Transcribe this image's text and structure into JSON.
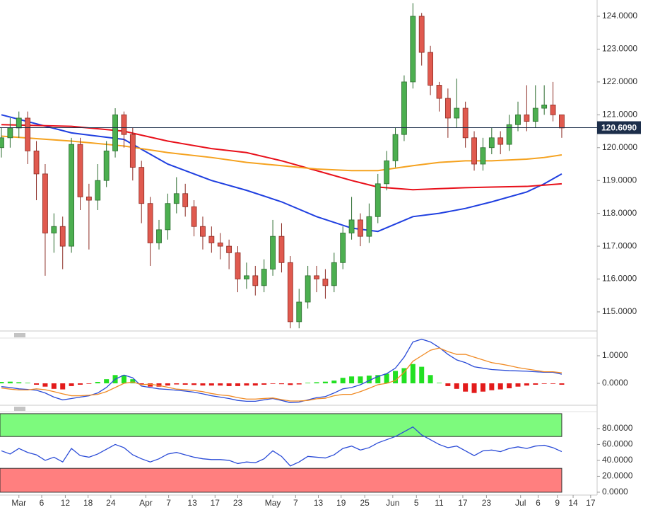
{
  "chart_data": [
    {
      "type": "candlestick",
      "x": [
        0,
        1,
        2,
        3,
        4,
        5,
        6,
        7,
        8,
        9,
        10,
        11,
        12,
        13,
        14,
        15,
        16,
        17,
        18,
        19,
        20,
        21,
        22,
        23,
        24,
        25,
        26,
        27,
        28,
        29,
        30,
        31,
        32,
        33,
        34,
        35,
        36,
        37,
        38,
        39,
        40,
        41,
        42,
        43,
        44,
        45,
        46,
        47,
        48,
        49,
        50,
        51,
        52,
        53,
        54,
        55,
        56,
        57,
        58,
        59,
        60,
        61,
        62,
        63,
        64
      ],
      "open": [
        120.0,
        120.3,
        120.6,
        120.9,
        119.9,
        119.2,
        117.4,
        117.6,
        117.0,
        120.1,
        118.5,
        118.4,
        119.0,
        119.9,
        121.0,
        120.4,
        119.4,
        118.3,
        117.1,
        117.5,
        118.3,
        118.6,
        118.2,
        117.6,
        117.3,
        117.1,
        117.0,
        116.8,
        116.0,
        116.1,
        115.8,
        116.3,
        117.3,
        116.5,
        114.7,
        115.3,
        116.1,
        116.0,
        115.8,
        116.5,
        117.4,
        117.8,
        117.3,
        117.9,
        118.9,
        119.6,
        120.4,
        122.0,
        124.0,
        122.9,
        121.9,
        121.5,
        120.9,
        121.2,
        120.3,
        119.5,
        120.0,
        120.3,
        120.1,
        120.7,
        121.0,
        120.8,
        121.2,
        121.3,
        121.0
      ],
      "high": [
        120.6,
        120.9,
        121.1,
        121.1,
        120.2,
        119.5,
        118.0,
        117.9,
        120.3,
        120.3,
        118.9,
        119.5,
        120.2,
        121.2,
        121.1,
        120.6,
        119.6,
        118.5,
        117.8,
        118.6,
        119.1,
        118.9,
        118.4,
        117.9,
        117.6,
        117.4,
        117.2,
        117.0,
        116.5,
        116.4,
        116.6,
        117.8,
        117.7,
        116.7,
        115.7,
        116.4,
        116.4,
        116.3,
        116.8,
        117.6,
        118.5,
        118.0,
        118.3,
        119.2,
        119.9,
        120.6,
        122.2,
        124.4,
        124.1,
        123.1,
        122.0,
        121.8,
        122.1,
        121.4,
        120.5,
        120.3,
        120.6,
        120.5,
        121.0,
        121.4,
        121.9,
        121.9,
        121.9,
        122.0,
        121.0
      ],
      "low": [
        119.7,
        120.0,
        120.3,
        119.5,
        118.4,
        116.1,
        116.8,
        116.3,
        116.8,
        118.1,
        116.9,
        118.1,
        118.8,
        119.7,
        120.0,
        119.0,
        117.7,
        116.4,
        116.9,
        117.2,
        118.0,
        117.9,
        117.3,
        116.9,
        116.8,
        116.6,
        116.3,
        115.6,
        115.7,
        115.5,
        115.6,
        116.1,
        116.2,
        114.5,
        114.5,
        115.1,
        115.6,
        115.4,
        115.6,
        116.3,
        117.2,
        117.0,
        117.1,
        117.7,
        118.7,
        119.4,
        120.2,
        121.8,
        122.5,
        121.6,
        121.1,
        120.3,
        120.6,
        120.0,
        119.3,
        119.3,
        119.8,
        119.8,
        119.9,
        120.5,
        120.5,
        120.6,
        121.0,
        120.8,
        120.3
      ],
      "close": [
        120.3,
        120.6,
        120.9,
        119.9,
        119.2,
        117.4,
        117.6,
        117.0,
        120.1,
        118.5,
        118.4,
        119.0,
        119.9,
        121.0,
        120.4,
        119.4,
        118.3,
        117.1,
        117.5,
        118.3,
        118.6,
        118.2,
        117.6,
        117.3,
        117.1,
        117.0,
        116.8,
        116.0,
        116.1,
        115.8,
        116.3,
        117.3,
        116.5,
        114.7,
        115.3,
        116.1,
        116.0,
        115.8,
        116.5,
        117.4,
        117.8,
        117.3,
        117.9,
        118.9,
        119.6,
        120.4,
        122.0,
        124.0,
        122.9,
        121.9,
        121.5,
        120.9,
        121.2,
        120.3,
        119.5,
        120.0,
        120.3,
        120.1,
        120.7,
        121.0,
        120.8,
        121.2,
        121.3,
        121.0,
        120.6
      ],
      "up_color": "#4caf50",
      "down_color": "#e05a4f",
      "series": [
        {
          "color": "#1f3fe0",
          "x": [
            0,
            8,
            14,
            19,
            24,
            28,
            32,
            36,
            40,
            43,
            47,
            50,
            53,
            56,
            60,
            62,
            64
          ],
          "values": [
            121.0,
            120.45,
            120.25,
            119.5,
            119.0,
            118.7,
            118.35,
            117.9,
            117.55,
            117.45,
            117.9,
            118.0,
            118.15,
            118.35,
            118.65,
            118.9,
            119.2
          ]
        },
        {
          "color": "#e8101a",
          "x": [
            0,
            8,
            14,
            19,
            24,
            28,
            32,
            36,
            40,
            43,
            47,
            50,
            53,
            56,
            60,
            62,
            64
          ],
          "values": [
            120.7,
            120.65,
            120.5,
            120.2,
            119.97,
            119.85,
            119.6,
            119.3,
            119.0,
            118.8,
            118.72,
            118.75,
            118.78,
            118.8,
            118.82,
            118.86,
            118.9
          ]
        },
        {
          "color": "#f5a21f",
          "x": [
            0,
            8,
            14,
            19,
            24,
            28,
            32,
            36,
            40,
            43,
            47,
            50,
            53,
            56,
            60,
            62,
            64
          ],
          "values": [
            120.35,
            120.2,
            120.05,
            119.85,
            119.7,
            119.55,
            119.45,
            119.35,
            119.3,
            119.3,
            119.45,
            119.55,
            119.6,
            119.6,
            119.65,
            119.7,
            119.78
          ]
        }
      ],
      "last_price": {
        "value": 120.609,
        "label": "120.6090"
      },
      "xlim": [
        -0.16,
        68.04
      ],
      "ylim": [
        114.418,
        124.495
      ],
      "yticks": [
        {
          "value": 115,
          "label": "115.0000"
        },
        {
          "value": 116,
          "label": "116.0000"
        },
        {
          "value": 117,
          "label": "117.0000"
        },
        {
          "value": 118,
          "label": "118.0000"
        },
        {
          "value": 119,
          "label": "119.0000"
        },
        {
          "value": 120,
          "label": "120.0000"
        },
        {
          "value": 121,
          "label": "121.0000"
        },
        {
          "value": 122,
          "label": "122.0000"
        },
        {
          "value": 123,
          "label": "123.0000"
        },
        {
          "value": 124,
          "label": "124.0000"
        }
      ]
    },
    {
      "type": "macd",
      "histogram": [
        0.05,
        0.06,
        0.04,
        0.02,
        -0.05,
        -0.12,
        -0.2,
        -0.22,
        -0.1,
        -0.05,
        -0.02,
        0.05,
        0.15,
        0.3,
        0.3,
        0.15,
        -0.05,
        -0.12,
        -0.12,
        -0.08,
        -0.04,
        -0.05,
        -0.06,
        -0.08,
        -0.08,
        -0.08,
        -0.1,
        -0.1,
        -0.08,
        -0.08,
        -0.05,
        -0.02,
        -0.03,
        -0.06,
        -0.04,
        0.02,
        0.04,
        0.06,
        0.1,
        0.2,
        0.25,
        0.25,
        0.28,
        0.3,
        0.35,
        0.45,
        0.55,
        0.7,
        0.6,
        0.3,
        0.02,
        -0.1,
        -0.2,
        -0.3,
        -0.35,
        -0.3,
        -0.25,
        -0.22,
        -0.18,
        -0.12,
        -0.08,
        -0.05,
        -0.02,
        -0.02,
        -0.05
      ],
      "positive_color": "#22e022",
      "negative_color": "#e31b1b",
      "series": [
        {
          "color": "#2a4bd7",
          "values": [
            -0.12,
            -0.15,
            -0.2,
            -0.22,
            -0.25,
            -0.35,
            -0.5,
            -0.6,
            -0.55,
            -0.5,
            -0.45,
            -0.35,
            -0.15,
            0.15,
            0.3,
            0.2,
            -0.1,
            -0.15,
            -0.2,
            -0.22,
            -0.25,
            -0.28,
            -0.32,
            -0.38,
            -0.45,
            -0.5,
            -0.55,
            -0.62,
            -0.65,
            -0.65,
            -0.6,
            -0.55,
            -0.62,
            -0.7,
            -0.68,
            -0.6,
            -0.52,
            -0.48,
            -0.35,
            -0.2,
            -0.15,
            -0.05,
            0.1,
            0.25,
            0.35,
            0.55,
            0.95,
            1.5,
            1.6,
            1.5,
            1.3,
            1.05,
            0.85,
            0.75,
            0.6,
            0.55,
            0.5,
            0.48,
            0.46,
            0.45,
            0.44,
            0.42,
            0.4,
            0.4,
            0.33
          ]
        },
        {
          "color": "#f08a24",
          "values": [
            -0.17,
            -0.21,
            -0.24,
            -0.24,
            -0.2,
            -0.23,
            -0.3,
            -0.38,
            -0.45,
            -0.45,
            -0.43,
            -0.4,
            -0.3,
            -0.15,
            0.0,
            0.05,
            -0.05,
            -0.03,
            -0.08,
            -0.14,
            -0.21,
            -0.23,
            -0.26,
            -0.3,
            -0.37,
            -0.42,
            -0.45,
            -0.52,
            -0.57,
            -0.57,
            -0.55,
            -0.53,
            -0.59,
            -0.64,
            -0.64,
            -0.62,
            -0.56,
            -0.54,
            -0.45,
            -0.4,
            -0.4,
            -0.3,
            -0.18,
            -0.05,
            0.0,
            0.1,
            0.4,
            0.8,
            1.0,
            1.2,
            1.28,
            1.15,
            1.05,
            1.05,
            0.95,
            0.85,
            0.75,
            0.7,
            0.64,
            0.57,
            0.52,
            0.47,
            0.42,
            0.42,
            0.38
          ]
        }
      ],
      "xlim": [
        -0.16,
        68.04
      ],
      "ylim": [
        -0.769,
        1.641
      ],
      "yticks": [
        {
          "value": 0,
          "label": "0.0000"
        },
        {
          "value": 1,
          "label": "1.0000"
        }
      ]
    },
    {
      "type": "line",
      "series": [
        {
          "color": "#2a4bd7",
          "values": [
            52,
            48,
            55,
            50,
            47,
            40,
            44,
            38,
            55,
            46,
            44,
            48,
            54,
            60,
            56,
            47,
            42,
            38,
            42,
            48,
            50,
            47,
            44,
            42,
            41,
            41,
            40,
            36,
            38,
            37,
            42,
            52,
            45,
            33,
            38,
            45,
            44,
            43,
            47,
            55,
            58,
            53,
            56,
            62,
            66,
            70,
            76,
            82,
            72,
            66,
            60,
            56,
            58,
            52,
            46,
            52,
            53,
            51,
            55,
            57,
            55,
            58,
            59,
            56,
            51
          ]
        }
      ],
      "zones": [
        {
          "from": 70,
          "to": 98.7,
          "color": "#7dfa7d"
        },
        {
          "from": 0,
          "to": 30,
          "color": "#ff7f7f"
        }
      ],
      "xlim": [
        -0.16,
        68.04
      ],
      "ylim": [
        -3.6,
        100.4
      ],
      "yticks": [
        {
          "value": 0,
          "label": "0.0000"
        },
        {
          "value": 20,
          "label": "20.0000"
        },
        {
          "value": 40,
          "label": "40.0000"
        },
        {
          "value": 60,
          "label": "60.0000"
        },
        {
          "value": 80,
          "label": "80.0000"
        }
      ],
      "xticks": [
        {
          "value": 2.0,
          "label": "Mar"
        },
        {
          "value": 4.6,
          "label": "6"
        },
        {
          "value": 7.3,
          "label": "12"
        },
        {
          "value": 9.9,
          "label": "18"
        },
        {
          "value": 12.5,
          "label": "24"
        },
        {
          "value": 16.5,
          "label": "Apr"
        },
        {
          "value": 19.1,
          "label": "7"
        },
        {
          "value": 21.8,
          "label": "13"
        },
        {
          "value": 24.4,
          "label": "17"
        },
        {
          "value": 27.0,
          "label": "23"
        },
        {
          "value": 31.0,
          "label": "May"
        },
        {
          "value": 33.6,
          "label": "7"
        },
        {
          "value": 36.2,
          "label": "13"
        },
        {
          "value": 38.8,
          "label": "19"
        },
        {
          "value": 41.5,
          "label": "25"
        },
        {
          "value": 44.7,
          "label": "Jun"
        },
        {
          "value": 47.4,
          "label": "5"
        },
        {
          "value": 50.0,
          "label": "11"
        },
        {
          "value": 52.7,
          "label": "17"
        },
        {
          "value": 55.4,
          "label": "23"
        },
        {
          "value": 59.3,
          "label": "Jul"
        },
        {
          "value": 61.3,
          "label": "6"
        },
        {
          "value": 63.5,
          "label": "9"
        },
        {
          "value": 65.3,
          "label": "14"
        },
        {
          "value": 67.3,
          "label": "17"
        }
      ]
    }
  ]
}
